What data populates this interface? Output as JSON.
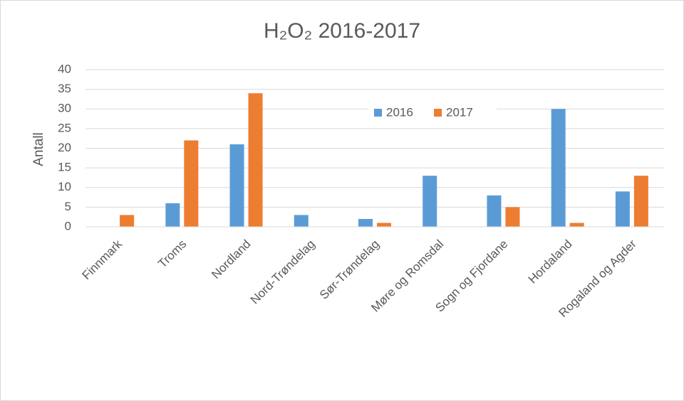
{
  "chart_data": {
    "type": "bar",
    "title": "H₂O₂ 2016-2017",
    "y_label": "Antall",
    "categories": [
      "Finnmark",
      "Troms",
      "Nordland",
      "Nord-Trøndelag",
      "Sør-Trøndelag",
      "Møre og Romsdal",
      "Sogn og Fjordane",
      "Hordaland",
      "Rogaland og Agder"
    ],
    "series": [
      {
        "name": "2016",
        "color": "#5b9bd5",
        "values": [
          0,
          6,
          21,
          3,
          2,
          13,
          8,
          30,
          9
        ]
      },
      {
        "name": "2017",
        "color": "#ed7d31",
        "values": [
          3,
          22,
          34,
          0,
          1,
          0,
          5,
          1,
          13
        ]
      }
    ],
    "ylim": [
      0,
      40
    ],
    "yticks": [
      0,
      5,
      10,
      15,
      20,
      25,
      30,
      35,
      40
    ],
    "grid": true,
    "legend": "upper-center"
  }
}
